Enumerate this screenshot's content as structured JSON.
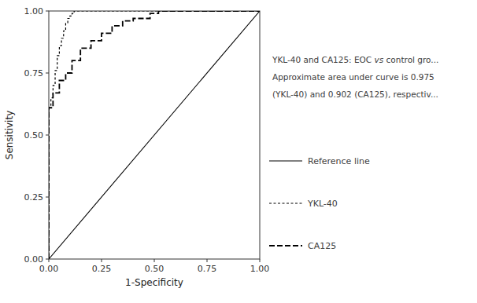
{
  "chart_data": {
    "type": "line",
    "xlabel": "1-Specificity",
    "ylabel": "Sensitivity",
    "xlim": [
      0.0,
      1.0
    ],
    "ylim": [
      0.0,
      1.0
    ],
    "xticks": [
      {
        "value": 0.0,
        "label": "0.00"
      },
      {
        "value": 0.25,
        "label": "0.25"
      },
      {
        "value": 0.5,
        "label": "0.50"
      },
      {
        "value": 0.75,
        "label": "0.75"
      },
      {
        "value": 1.0,
        "label": "1.00"
      }
    ],
    "yticks": [
      {
        "value": 0.0,
        "label": "0.00"
      },
      {
        "value": 0.25,
        "label": "0.25"
      },
      {
        "value": 0.5,
        "label": "0.50"
      },
      {
        "value": 0.75,
        "label": "0.75"
      },
      {
        "value": 1.0,
        "label": "1.00"
      }
    ],
    "grid": false,
    "legend": "right",
    "annotations": [
      "YKL-40 and CA125: EOC ",
      "vs",
      " control gro...",
      "Approximate area under curve is 0.975",
      "(YKL-40) and 0.902 (CA125), respectiv..."
    ],
    "series": [
      {
        "name": "Reference line",
        "color": "#000000",
        "line_style": "solid",
        "x": [
          0.0,
          1.0
        ],
        "values": [
          0.0,
          1.0
        ]
      },
      {
        "name": "YKL-40",
        "color": "#000000",
        "line_style": "dashed",
        "x": [
          0.0,
          0.0,
          0.01,
          0.01,
          0.02,
          0.02,
          0.03,
          0.03,
          0.04,
          0.04,
          0.05,
          0.05,
          0.06,
          0.06,
          0.07,
          0.07,
          0.08,
          0.08,
          0.09,
          0.09,
          0.1,
          0.1,
          0.11,
          0.11,
          0.12,
          0.12,
          0.14,
          0.14,
          0.16,
          0.16,
          0.2,
          0.2,
          0.3,
          0.3,
          1.0
        ],
        "values": [
          0.0,
          0.61,
          0.61,
          0.65,
          0.65,
          0.7,
          0.7,
          0.76,
          0.76,
          0.82,
          0.82,
          0.86,
          0.86,
          0.89,
          0.89,
          0.92,
          0.92,
          0.95,
          0.95,
          0.97,
          0.97,
          0.98,
          0.98,
          0.99,
          0.99,
          1.0,
          1.0,
          1.0,
          1.0,
          1.0,
          1.0,
          1.0,
          1.0,
          1.0,
          1.0
        ]
      },
      {
        "name": "CA125",
        "color": "#000000",
        "line_style": "long-dashed",
        "x": [
          0.0,
          0.0,
          0.02,
          0.02,
          0.05,
          0.05,
          0.08,
          0.08,
          0.11,
          0.11,
          0.15,
          0.15,
          0.2,
          0.2,
          0.25,
          0.25,
          0.3,
          0.3,
          0.35,
          0.35,
          0.4,
          0.4,
          0.48,
          0.48,
          0.52,
          0.52,
          1.0
        ],
        "values": [
          0.0,
          0.61,
          0.61,
          0.67,
          0.67,
          0.72,
          0.72,
          0.75,
          0.75,
          0.8,
          0.8,
          0.85,
          0.85,
          0.88,
          0.88,
          0.91,
          0.91,
          0.94,
          0.94,
          0.96,
          0.96,
          0.97,
          0.97,
          0.99,
          0.99,
          1.0,
          1.0
        ]
      }
    ]
  }
}
